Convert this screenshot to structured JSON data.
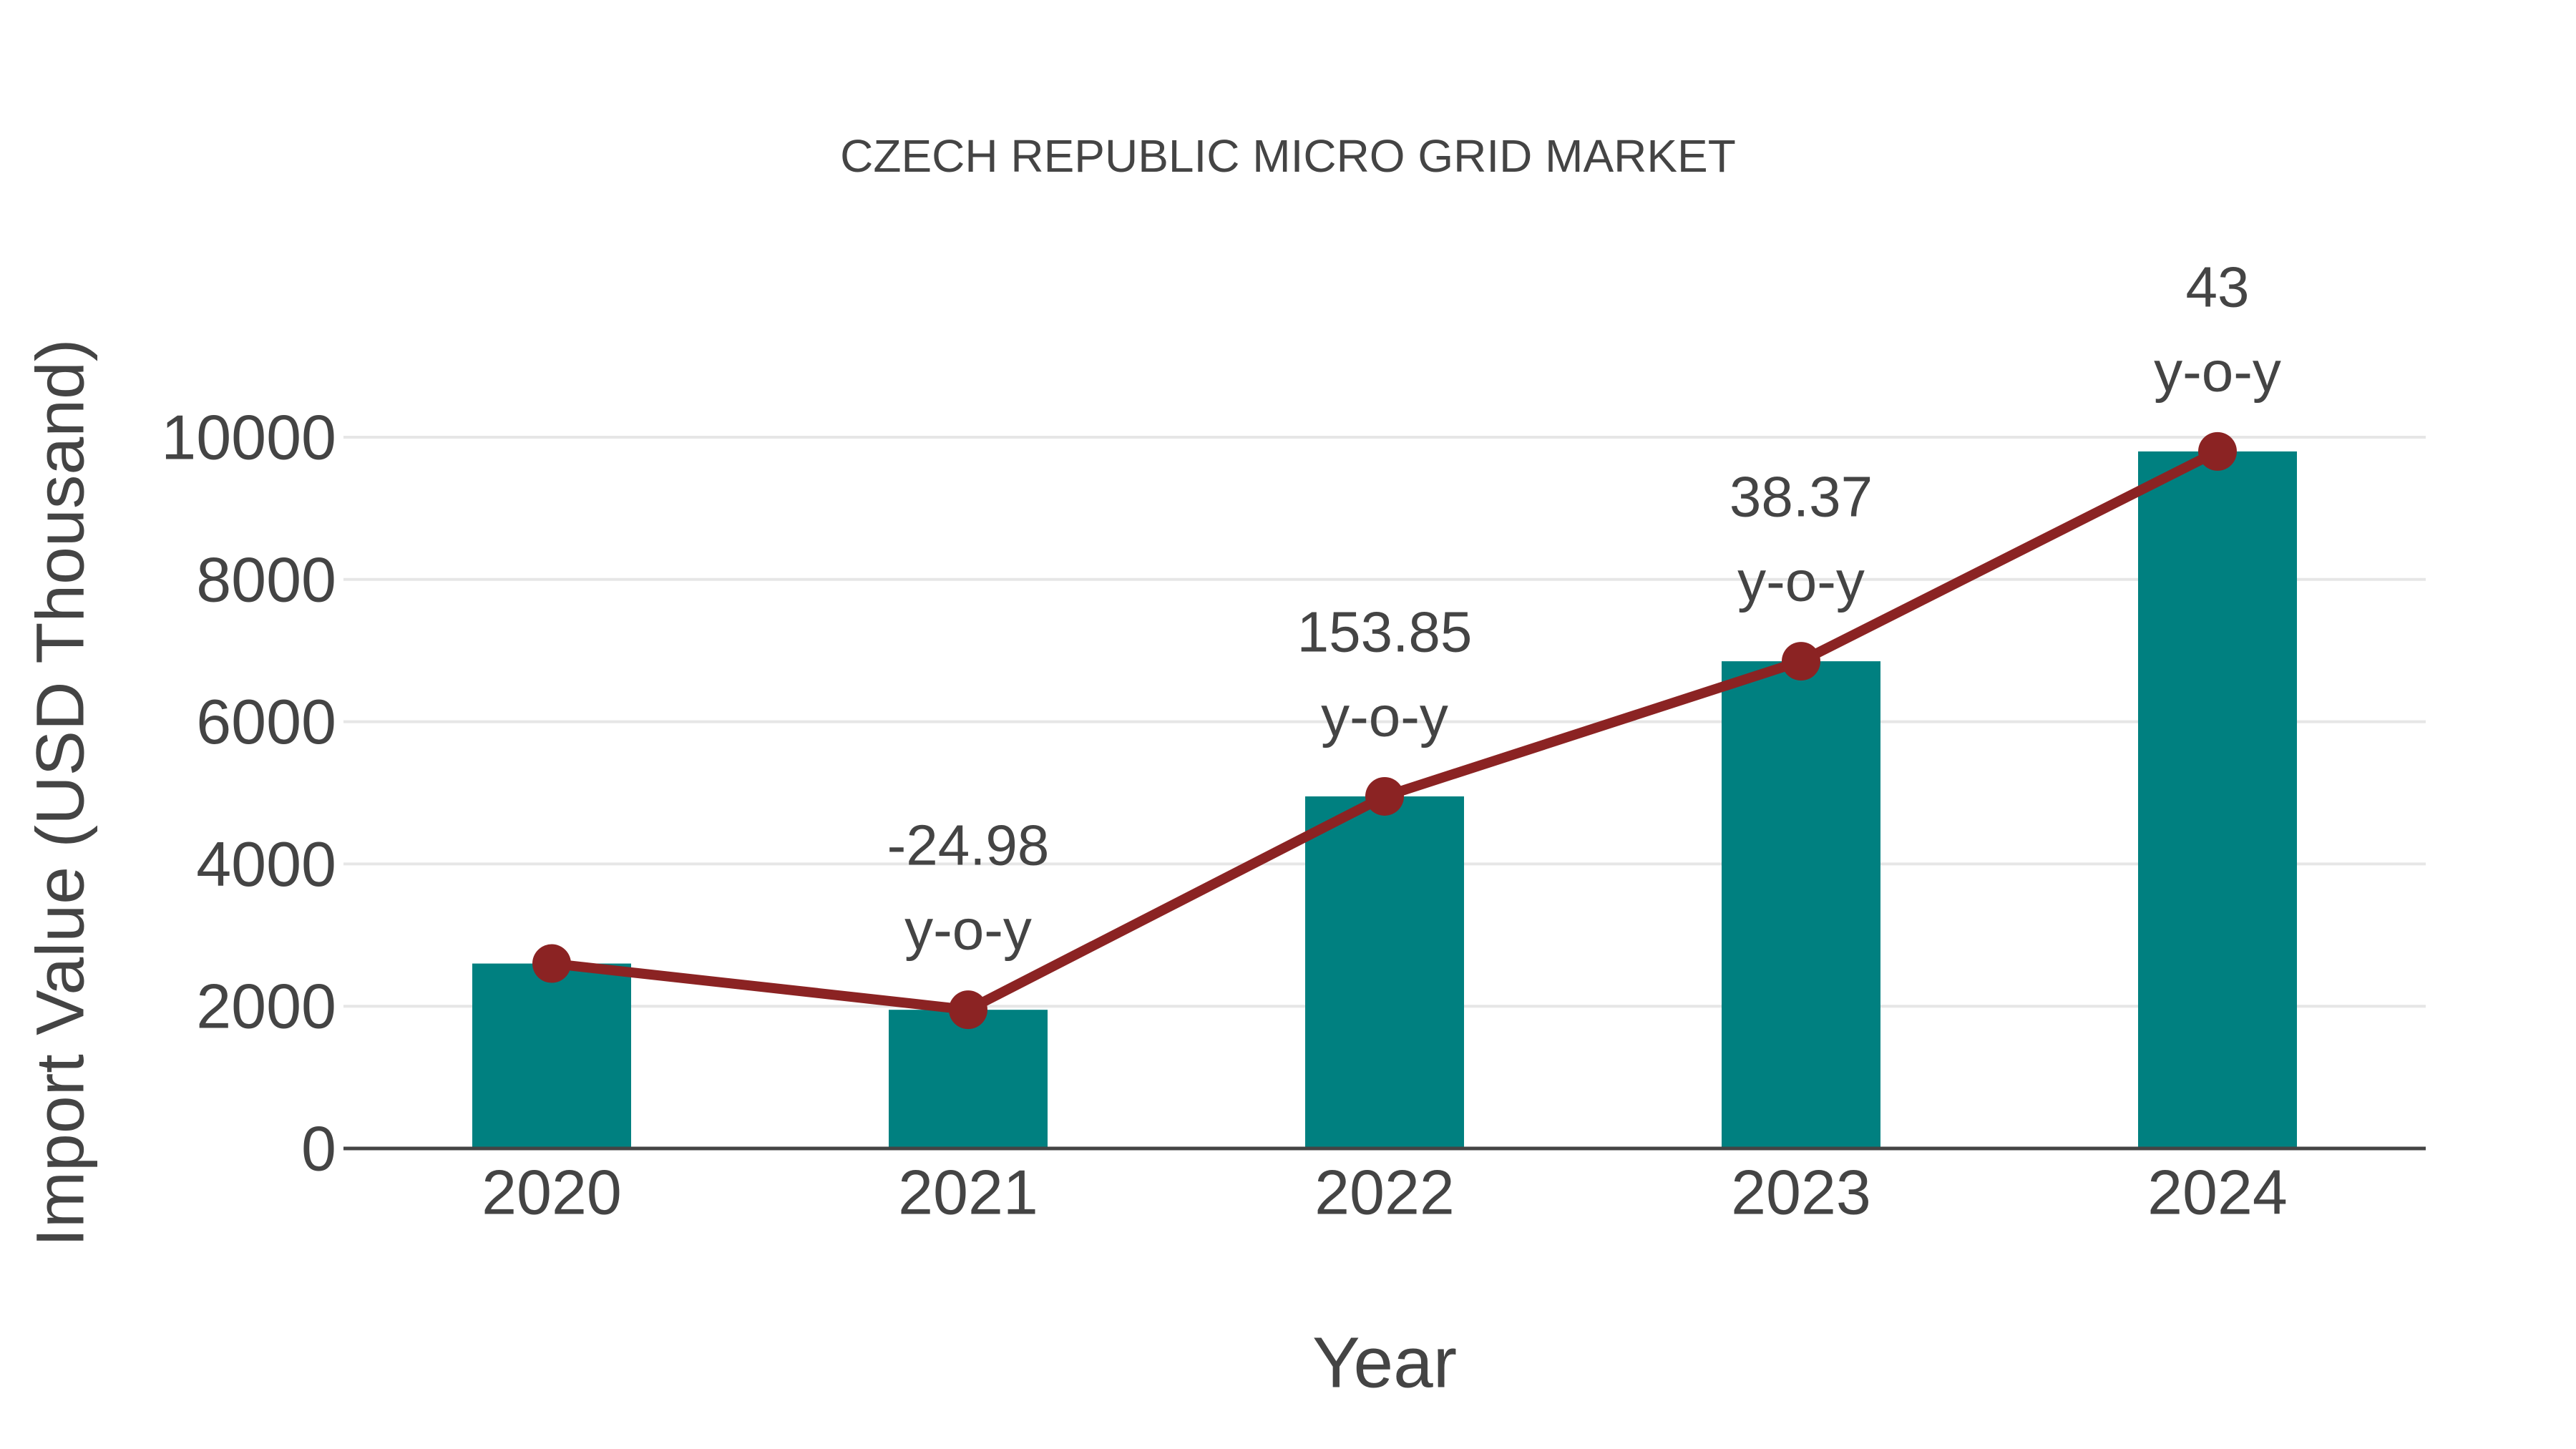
{
  "chart_data": {
    "type": "bar",
    "subtype": "bar-with-line-overlay",
    "title": "CZECH REPUBLIC MICRO GRID MARKET",
    "xlabel": "Year",
    "ylabel": "Import Value (USD Thousand)",
    "categories": [
      "2020",
      "2021",
      "2022",
      "2023",
      "2024"
    ],
    "values": [
      2600,
      1950,
      4950,
      6850,
      9800
    ],
    "line_overlay": {
      "name": "y-o-y trend line",
      "values": [
        2600,
        1950,
        4950,
        6850,
        9800
      ],
      "marker": "circle"
    },
    "annotations": [
      {
        "category": "2020",
        "value": "",
        "suffix": ""
      },
      {
        "category": "2021",
        "value": "-24.98",
        "suffix": "y-o-y"
      },
      {
        "category": "2022",
        "value": "153.85",
        "suffix": "y-o-y"
      },
      {
        "category": "2023",
        "value": "38.37",
        "suffix": "y-o-y"
      },
      {
        "category": "2024",
        "value": "43",
        "suffix": "y-o-y"
      }
    ],
    "ylim": [
      0,
      10000
    ],
    "yticks": [
      0,
      2000,
      4000,
      6000,
      8000,
      10000
    ],
    "grid": true,
    "legend": false,
    "colors": {
      "bar": "#008080",
      "line": "#8B2323",
      "grid": "#E6E6E6",
      "axis": "#444444",
      "text": "#444444"
    }
  }
}
